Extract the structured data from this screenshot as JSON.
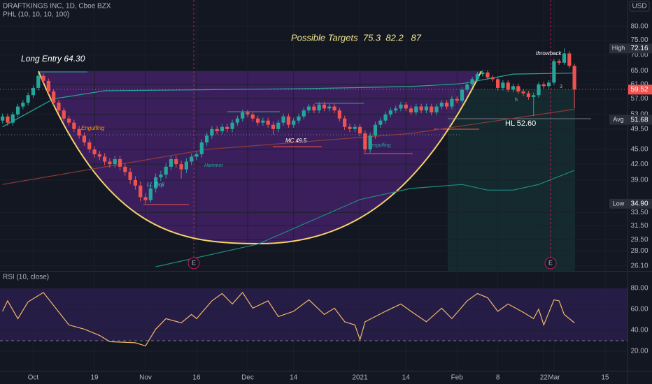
{
  "header": {
    "symbol": "DRAFTKINGS INC, 1D, Cboe BZX",
    "indicator": "PHL (10, 10, 10, 100)",
    "currency": "USD"
  },
  "annotations": {
    "targets": "Possible Targets  75.3  82.2   87",
    "entry": "Long Entry 64.30",
    "throwback": "throwback",
    "hl": "HL 52.60",
    "mc": "MC 49.5",
    "engulfing_top": "Engulfing",
    "ll_doji": "LL Doji",
    "hammer": "Hammer",
    "engulfing_bottom": "engulfing",
    "h": "h",
    "three": "3",
    "earnings": [
      "E",
      "E"
    ]
  },
  "chart_data": [
    {
      "type": "candlestick",
      "up_color": "#26a69a",
      "down_color": "#ef5350",
      "log_scale": true,
      "grid": true,
      "xlim": [
        -0.5,
        122.4
      ],
      "ylim": [
        25.5,
        90.5
      ],
      "xticks": [
        {
          "value": 6,
          "label": "Oct"
        },
        {
          "value": 18,
          "label": "19"
        },
        {
          "value": 28,
          "label": "Nov"
        },
        {
          "value": 38,
          "label": "16"
        },
        {
          "value": 48,
          "label": "Dec"
        },
        {
          "value": 57,
          "label": "14"
        },
        {
          "value": 70,
          "label": "2021"
        },
        {
          "value": 79,
          "label": "14"
        },
        {
          "value": 89,
          "label": "Feb"
        },
        {
          "value": 97,
          "label": "8"
        },
        {
          "value": 106,
          "label": "22"
        },
        {
          "value": 108,
          "label": "Mar"
        },
        {
          "value": 118,
          "label": "15"
        }
      ],
      "yticks": [
        {
          "value": 80,
          "label": "80.00"
        },
        {
          "value": 75,
          "label": "75.00"
        },
        {
          "value": 70,
          "label": "70.00"
        },
        {
          "value": 65,
          "label": "65.00"
        },
        {
          "value": 61,
          "label": "61.00"
        },
        {
          "value": 57,
          "label": "57.00"
        },
        {
          "value": 53,
          "label": "53.00"
        },
        {
          "value": 49.5,
          "label": "49.50"
        },
        {
          "value": 45,
          "label": "45.00"
        },
        {
          "value": 42,
          "label": "42.00"
        },
        {
          "value": 39,
          "label": "39.00"
        },
        {
          "value": 33.5,
          "label": "33.50"
        },
        {
          "value": 31.5,
          "label": "31.50"
        },
        {
          "value": 29.5,
          "label": "29.50"
        },
        {
          "value": 28,
          "label": "28.00"
        },
        {
          "value": 26.1,
          "label": "26.10"
        }
      ],
      "open": [
        51.5,
        52.5,
        51,
        53,
        55,
        56,
        58,
        60,
        63.5,
        62,
        59,
        56,
        54,
        52,
        51,
        49.5,
        48,
        46.5,
        45,
        44,
        43.5,
        42.5,
        42,
        43,
        41.5,
        40.5,
        39,
        38,
        36,
        35.5,
        37.5,
        39.5,
        40,
        41.5,
        43,
        42,
        41,
        42.5,
        43.5,
        44,
        46.5,
        48,
        49.5,
        49,
        50,
        49.5,
        51,
        52,
        53.5,
        53,
        52,
        51,
        51.5,
        50.5,
        49.5,
        51,
        52.5,
        50.5,
        51.5,
        52.5,
        54,
        55,
        54,
        55.5,
        54.5,
        55,
        54,
        52,
        50,
        49.5,
        50,
        48.5,
        45,
        48,
        50.5,
        51.5,
        53,
        54,
        54.5,
        55.5,
        54.5,
        53.5,
        55,
        54,
        55,
        53.5,
        55,
        56,
        55,
        57,
        56.5,
        59.5,
        61,
        62.5,
        64,
        64.5,
        63,
        62.5,
        60,
        61.5,
        59.5,
        60.5,
        59,
        58.5,
        57.5,
        58,
        61,
        60.5,
        61.5,
        68,
        67.5,
        70.5,
        66.5
      ],
      "high": [
        53.2,
        53.2,
        53.7,
        55.7,
        56.7,
        58.7,
        60.7,
        64.3,
        64.2,
        62.7,
        59.7,
        56.7,
        54.7,
        52.7,
        51.7,
        50.2,
        48.7,
        47.2,
        45.7,
        44.7,
        44.2,
        43.2,
        43.7,
        43.7,
        42.2,
        41.2,
        39.7,
        38.7,
        36.7,
        38.2,
        40.2,
        40.7,
        42.2,
        43.7,
        43.7,
        42.7,
        43.2,
        44.2,
        44.7,
        47.2,
        48.7,
        50.2,
        50.2,
        50.7,
        50.7,
        51.7,
        52.7,
        54.2,
        54.2,
        53.7,
        52.7,
        52.2,
        52.2,
        51.2,
        51.7,
        53.2,
        53.2,
        52.2,
        53.2,
        54.7,
        55.7,
        55.7,
        56.2,
        56.2,
        55.7,
        55.7,
        54.7,
        52.7,
        50.7,
        50.7,
        50.7,
        49.2,
        48.7,
        51.2,
        52.2,
        53.7,
        54.7,
        55.2,
        56.2,
        56.2,
        55.2,
        55.7,
        55.7,
        55.7,
        55.7,
        55.7,
        56.7,
        56.7,
        57.7,
        57.7,
        60.2,
        61.7,
        63.2,
        64.7,
        65.2,
        65.2,
        63.7,
        63.2,
        62.2,
        62.2,
        61.2,
        61.2,
        59.7,
        59.2,
        58.7,
        61.7,
        61.7,
        62.2,
        68.7,
        68.7,
        72.16,
        71.2,
        67.2
      ],
      "low": [
        50.8,
        50.3,
        50.3,
        52.3,
        54.3,
        55.3,
        57.3,
        59.3,
        61.3,
        58.3,
        55.3,
        53.3,
        51.3,
        50.3,
        48.8,
        47.3,
        45.8,
        44.3,
        43.3,
        42.8,
        41.8,
        41.3,
        41.3,
        40.8,
        39.8,
        38.3,
        37.3,
        35.3,
        34.9,
        35.1,
        36.8,
        38.8,
        39.3,
        40.8,
        41.3,
        39.3,
        40.3,
        41.8,
        42.8,
        43.3,
        45.8,
        47.3,
        48.3,
        48.3,
        48.8,
        48.8,
        50.3,
        51.3,
        52.3,
        51.3,
        50.3,
        50.3,
        49.8,
        48.2,
        48.8,
        50.3,
        49.8,
        49.8,
        50.8,
        51.8,
        53.3,
        53.3,
        53.3,
        53.8,
        53.8,
        53.3,
        51.3,
        49.3,
        48.8,
        48.8,
        47.8,
        44.3,
        44.3,
        47.3,
        49.8,
        50.8,
        52.3,
        53.3,
        53.8,
        53.8,
        52.8,
        52.8,
        53.3,
        53.3,
        52.8,
        52.8,
        54.3,
        54.3,
        54.3,
        55.8,
        55.8,
        58.8,
        60.3,
        61.8,
        63.3,
        62.3,
        61.8,
        59.3,
        59.3,
        58.8,
        58.8,
        58.3,
        57.8,
        56.8,
        52.6,
        57.3,
        59.8,
        59.8,
        60.8,
        66.8,
        66.8,
        65.8,
        54.5
      ],
      "close": [
        52.5,
        51,
        53,
        55,
        56,
        58,
        60,
        63.5,
        62,
        59,
        56,
        54,
        52,
        51,
        49.5,
        48,
        46.5,
        45,
        44,
        43.5,
        42.5,
        42,
        43,
        41.5,
        40.5,
        39,
        38,
        36,
        35.5,
        37.5,
        39.5,
        40,
        41.5,
        43,
        42,
        41,
        42.5,
        43.5,
        44,
        46.5,
        48,
        49.5,
        49,
        50,
        49.5,
        51,
        52,
        53.5,
        53,
        52,
        51,
        51.5,
        50.5,
        49.5,
        51,
        52.5,
        50.5,
        51.5,
        52.5,
        54,
        55,
        54,
        55.5,
        54.5,
        55,
        54,
        52,
        50,
        49.5,
        50,
        48.5,
        45,
        48,
        50.5,
        51.5,
        53,
        54,
        54.5,
        55.5,
        54.5,
        53.5,
        55,
        54,
        55,
        53.5,
        55,
        56,
        55,
        57,
        56.5,
        59.5,
        61,
        62.5,
        64,
        64.5,
        63,
        62.5,
        60,
        61.5,
        59.5,
        60.5,
        59,
        58.5,
        57.5,
        58,
        61,
        60.5,
        61.5,
        68,
        67.5,
        70.5,
        66.5,
        59.52
      ],
      "lines": [
        {
          "color": "#26a69a",
          "x": [
            0,
            10,
            20,
            40,
            60,
            80,
            90,
            100,
            112
          ],
          "values": [
            50,
            57,
            59.2,
            59.5,
            59.8,
            60.4,
            61.2,
            64,
            64.3
          ]
        },
        {
          "color": "#8d3b3b",
          "x": [
            0,
            40,
            80,
            112
          ],
          "values": [
            38.2,
            45,
            48.5,
            54.3
          ]
        },
        {
          "color": "#1e8c84",
          "x": [
            30,
            50,
            70,
            80,
            90,
            95,
            100,
            105,
            108,
            112
          ],
          "values": [
            26,
            28.9,
            35.6,
            37.5,
            38.2,
            37.2,
            37.2,
            38.2,
            39.3,
            40.8
          ]
        }
      ],
      "price_labels": [
        {
          "name": "High",
          "value": 72.16,
          "color": "#2a2e39"
        },
        {
          "value": 59.52,
          "color": "#ef5350"
        },
        {
          "name": "Avg",
          "value": 51.68,
          "color": "#2a2e39"
        },
        {
          "name": "Low",
          "value": 34.9,
          "label": "34.90",
          "color": "#2a2e39"
        }
      ]
    },
    {
      "type": "line",
      "title": "RSI (10, close)",
      "color": "#f5b76a",
      "ylim": [
        1.3,
        95.3
      ],
      "yticks": [
        {
          "value": 80,
          "label": "80.00"
        },
        {
          "value": 60,
          "label": "60.00"
        },
        {
          "value": 40,
          "label": "40.00"
        },
        {
          "value": 20,
          "label": "20.00"
        }
      ],
      "bands": [
        30,
        80
      ],
      "x": [
        0,
        1,
        3,
        5,
        8,
        13,
        16,
        19,
        21,
        26,
        28,
        30,
        32,
        35,
        37,
        38,
        41,
        43,
        45,
        47,
        49,
        52,
        54,
        57,
        60,
        63,
        65,
        67,
        69,
        70,
        71,
        75,
        78,
        80,
        83,
        86,
        88,
        91,
        93,
        95,
        97,
        99,
        102,
        104,
        105,
        106,
        108,
        109,
        110,
        112
      ],
      "values": [
        58,
        68,
        51,
        67,
        76,
        45,
        41,
        35,
        29,
        28,
        25,
        41,
        51,
        47,
        55,
        51,
        68,
        75,
        65,
        76,
        61,
        68,
        53,
        58,
        69,
        55,
        61,
        48,
        45,
        31,
        48,
        58,
        65,
        58,
        48,
        61,
        51,
        68,
        75,
        71,
        58,
        65,
        57,
        51,
        60,
        45,
        69,
        68,
        55,
        47
      ]
    }
  ]
}
